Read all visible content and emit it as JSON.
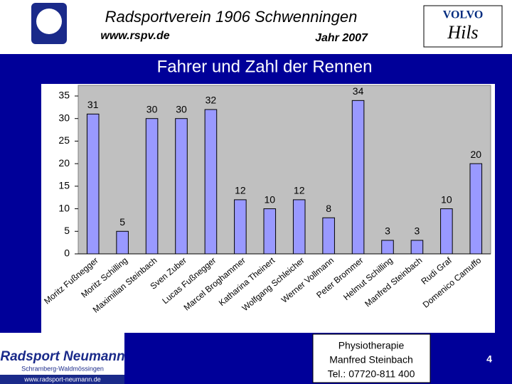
{
  "header": {
    "title": "Radsportverein 1906 Schwenningen",
    "url": "www.rspv.de",
    "year": "Jahr 2007",
    "sponsor_top": "VOLVO",
    "sponsor_bottom": "Hils"
  },
  "chart_data": {
    "type": "bar",
    "title": "Fahrer und Zahl der Rennen",
    "categories": [
      "Moritz Fußnegger",
      "Moritz Schilling",
      "Maximilian Steinbach",
      "Sven Zuber",
      "Lucas Fußnegger",
      "Marcel Broghammer",
      "Katharina Theinert",
      "Wolfgang Schleicher",
      "Werner Vollmann",
      "Peter Brommer",
      "Helmut Schilling",
      "Manfred Steinbach",
      "Rudi Graf",
      "Domenico Camuffo"
    ],
    "values": [
      31,
      5,
      30,
      30,
      32,
      12,
      10,
      12,
      8,
      34,
      3,
      3,
      10,
      20
    ],
    "color": "#9999ff",
    "ylim": [
      0,
      35
    ],
    "yticks": [
      0,
      5,
      10,
      15,
      20,
      25,
      30,
      35
    ],
    "grid": false
  },
  "footer": {
    "logo_title": "Radsport Neumann",
    "logo_subtitle": "Schramberg-Waldmössingen",
    "logo_url": "www.radsport-neumann.de",
    "box": [
      "Physiotherapie",
      "Manfred Steinbach",
      "Tel.: 07720-811 400"
    ],
    "page": "4"
  }
}
